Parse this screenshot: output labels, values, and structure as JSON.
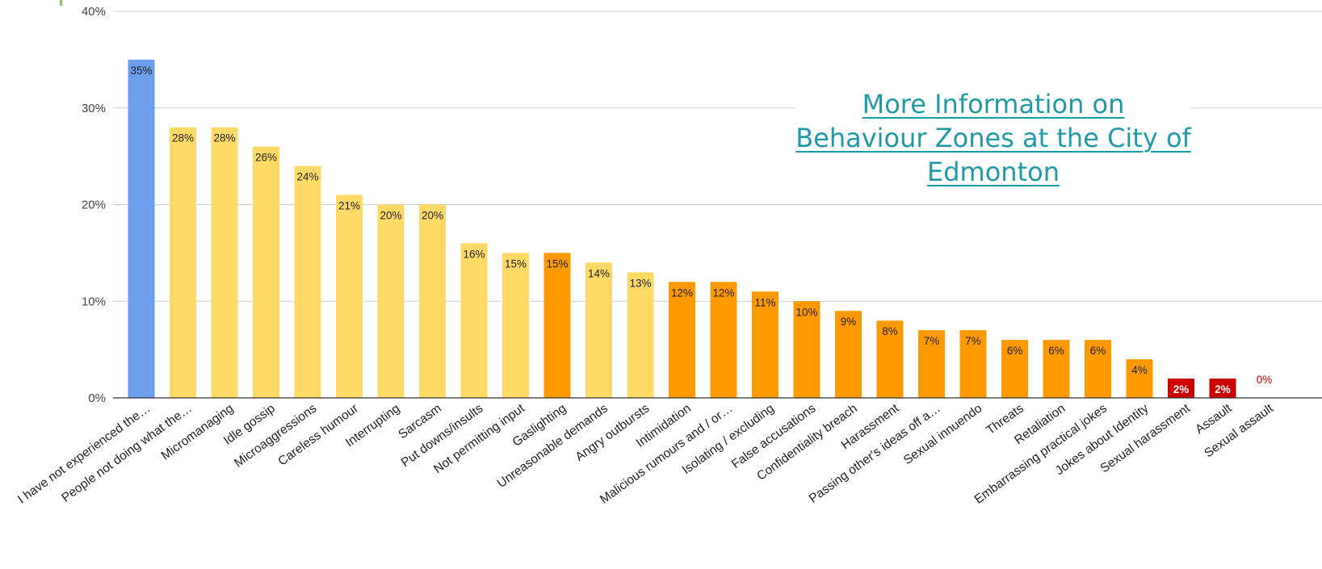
{
  "link": {
    "text": "More Information on Behaviour Zones at the City of Edmonton"
  },
  "colors": {
    "blue": "#6d9eeb",
    "yellow": "#ffd966",
    "orange": "#ff9900",
    "red": "#cc0000",
    "link": "#1f9aa6"
  },
  "chart_data": {
    "type": "bar",
    "title": "",
    "xlabel": "",
    "ylabel": "",
    "ylim": [
      0,
      40
    ],
    "y_ticks": [
      "0%",
      "10%",
      "20%",
      "30%",
      "40%"
    ],
    "grid": true,
    "legend": "none",
    "categories": [
      "I have not experienced the…",
      "People not doing what the…",
      "Micromanaging",
      "Idle gossip",
      "Microaggressions",
      "Careless humour",
      "Interrupting",
      "Sarcasm",
      "Put downs/insults",
      "Not permitting input",
      "Gaslighting",
      "Unreasonable demands",
      "Angry outbursts",
      "Intimidation",
      "Malicious rumours and / or…",
      "Isolating / excluding",
      "False accusations",
      "Confidentiality breach",
      "Harassment",
      "Passing other's ideas off a…",
      "Sexual innuendo",
      "Threats",
      "Retaliation",
      "Embarrassing practical jokes",
      "Jokes about Identity",
      "Sexual harassment",
      "Assault",
      "Sexual assault"
    ],
    "values": [
      35,
      28,
      28,
      26,
      24,
      21,
      20,
      20,
      16,
      15,
      15,
      14,
      13,
      12,
      12,
      11,
      10,
      9,
      8,
      7,
      7,
      6,
      6,
      6,
      4,
      2,
      2,
      0
    ],
    "data_labels": [
      "35%",
      "28%",
      "28%",
      "26%",
      "24%",
      "21%",
      "20%",
      "20%",
      "16%",
      "15%",
      "15%",
      "14%",
      "13%",
      "12%",
      "12%",
      "11%",
      "10%",
      "9%",
      "8%",
      "7%",
      "7%",
      "6%",
      "6%",
      "6%",
      "4%",
      "2%",
      "2%",
      "0%"
    ],
    "bar_colors": [
      "blue",
      "yellow",
      "yellow",
      "yellow",
      "yellow",
      "yellow",
      "yellow",
      "yellow",
      "yellow",
      "yellow",
      "orange",
      "yellow",
      "yellow",
      "orange",
      "orange",
      "orange",
      "orange",
      "orange",
      "orange",
      "orange",
      "orange",
      "orange",
      "orange",
      "orange",
      "orange",
      "red",
      "red",
      "red"
    ]
  }
}
